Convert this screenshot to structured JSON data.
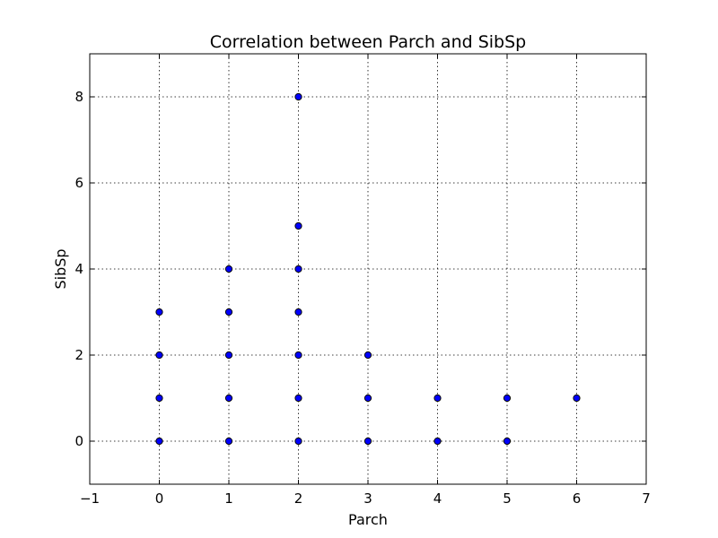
{
  "chart_data": {
    "type": "scatter",
    "title": "Correlation between Parch and SibSp",
    "xlabel": "Parch",
    "ylabel": "SibSp",
    "xlim": [
      -1,
      7
    ],
    "ylim": [
      -1,
      9
    ],
    "xticks": [
      -1,
      0,
      1,
      2,
      3,
      4,
      5,
      6,
      7
    ],
    "yticks": [
      0,
      2,
      4,
      6,
      8
    ],
    "grid": true,
    "marker_color": "#0000ff",
    "marker_edge": "#000000",
    "points": [
      {
        "x": 0,
        "y": 0
      },
      {
        "x": 0,
        "y": 1
      },
      {
        "x": 0,
        "y": 2
      },
      {
        "x": 0,
        "y": 3
      },
      {
        "x": 1,
        "y": 0
      },
      {
        "x": 1,
        "y": 1
      },
      {
        "x": 1,
        "y": 2
      },
      {
        "x": 1,
        "y": 3
      },
      {
        "x": 1,
        "y": 4
      },
      {
        "x": 2,
        "y": 0
      },
      {
        "x": 2,
        "y": 1
      },
      {
        "x": 2,
        "y": 2
      },
      {
        "x": 2,
        "y": 3
      },
      {
        "x": 2,
        "y": 4
      },
      {
        "x": 2,
        "y": 5
      },
      {
        "x": 2,
        "y": 8
      },
      {
        "x": 3,
        "y": 0
      },
      {
        "x": 3,
        "y": 1
      },
      {
        "x": 3,
        "y": 2
      },
      {
        "x": 4,
        "y": 0
      },
      {
        "x": 4,
        "y": 1
      },
      {
        "x": 5,
        "y": 0
      },
      {
        "x": 5,
        "y": 1
      },
      {
        "x": 6,
        "y": 1
      }
    ]
  }
}
